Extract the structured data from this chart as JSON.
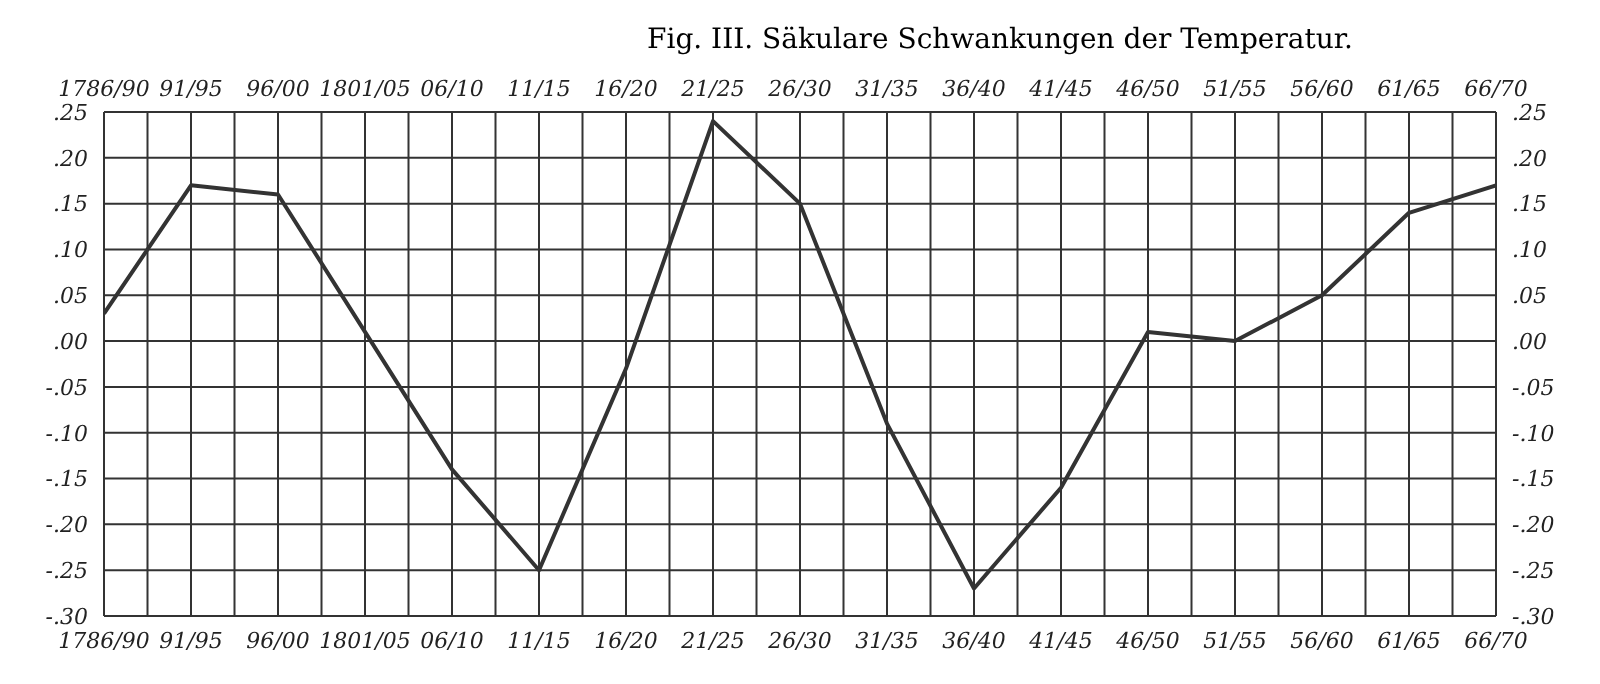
{
  "chart_data": {
    "type": "line",
    "title": "Fig. III.   Säkulare Schwankungen der Temperatur.",
    "categories": [
      "1786/90",
      "91/95",
      "96/00",
      "1801/05",
      "06/10",
      "11/15",
      "16/20",
      "21/25",
      "26/30",
      "31/35",
      "36/40",
      "41/45",
      "46/50",
      "51/55",
      "56/60",
      "61/65",
      "66/70"
    ],
    "series": [
      {
        "color": "#333333",
        "values": [
          0.03,
          0.17,
          0.16,
          0.01,
          -0.14,
          -0.25,
          -0.03,
          0.24,
          0.15,
          -0.09,
          -0.27,
          -0.16,
          0.01,
          0.0,
          0.05,
          0.14,
          0.17
        ]
      }
    ],
    "ylim": [
      -0.3,
      0.25
    ],
    "yticks": [
      {
        "value": 0.25,
        "label": ".25"
      },
      {
        "value": 0.2,
        "label": ".20"
      },
      {
        "value": 0.15,
        "label": ".15"
      },
      {
        "value": 0.1,
        "label": ".10"
      },
      {
        "value": 0.05,
        "label": ".05"
      },
      {
        "value": 0,
        "label": ".00"
      },
      {
        "value": -0.05,
        "label": "-.05"
      },
      {
        "value": -0.1,
        "label": "-.10"
      },
      {
        "value": -0.15,
        "label": "-.15"
      },
      {
        "value": -0.2,
        "label": "-.20"
      },
      {
        "value": -0.25,
        "label": "-.25"
      },
      {
        "value": -0.3,
        "label": "-.30"
      }
    ],
    "y2lim": [
      -0.3,
      0.25
    ],
    "y2ticks": [
      {
        "value": 0.25,
        "label": ".25"
      },
      {
        "value": 0.2,
        "label": ".20"
      },
      {
        "value": 0.15,
        "label": ".15"
      },
      {
        "value": 0.1,
        "label": ".10"
      },
      {
        "value": 0.05,
        "label": ".05"
      },
      {
        "value": 0,
        "label": ".00"
      },
      {
        "value": -0.05,
        "label": "-.05"
      },
      {
        "value": -0.1,
        "label": "-.10"
      },
      {
        "value": -0.15,
        "label": "-.15"
      },
      {
        "value": -0.2,
        "label": "-.20"
      },
      {
        "value": -0.25,
        "label": "-.25"
      },
      {
        "value": -0.3,
        "label": "-.30"
      }
    ],
    "grid": true,
    "legend": false,
    "marker": "none",
    "line_style": "solid"
  }
}
